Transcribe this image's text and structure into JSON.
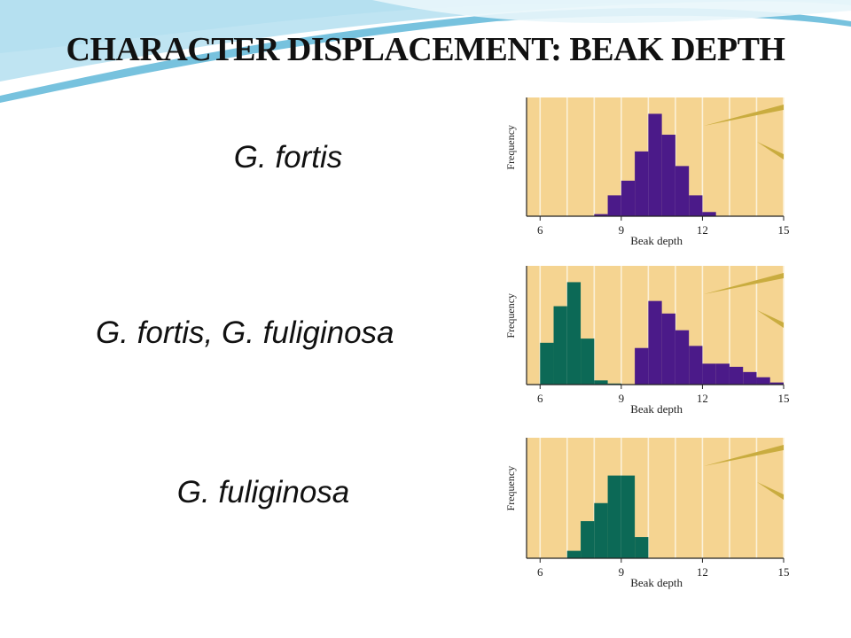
{
  "slide": {
    "title": "CHARACTER DISPLACEMENT: BEAK DEPTH",
    "labels": [
      "G. fortis",
      "G. fortis, G. fuliginosa",
      "G. fuliginosa"
    ]
  },
  "colors": {
    "panel_bg": "#f5d491",
    "gridline": "#fbf1d8",
    "fortis": "#4b1a89",
    "fuliginosa": "#0c6956",
    "quill": "#c9ac3f",
    "wave": "#7ec6e3"
  },
  "chart_data": [
    {
      "type": "bar",
      "subject": "G. fortis",
      "xlabel": "Beak depth",
      "ylabel": "Frequency",
      "xlim": [
        5.5,
        15
      ],
      "xticks": [
        6,
        9,
        12,
        15
      ],
      "ylim": [
        0,
        1
      ],
      "bin_width": 0.5,
      "series": [
        {
          "colorKey": "fortis",
          "bins": [
            [
              8,
              0.02
            ],
            [
              8.5,
              0.2
            ],
            [
              9,
              0.34
            ],
            [
              9.5,
              0.62
            ],
            [
              10,
              0.98
            ],
            [
              10.5,
              0.78
            ],
            [
              11,
              0.48
            ],
            [
              11.5,
              0.2
            ],
            [
              12,
              0.04
            ]
          ]
        }
      ]
    },
    {
      "type": "bar",
      "subject": "G. fortis, G. fuliginosa",
      "xlabel": "Beak depth",
      "ylabel": "Frequency",
      "xlim": [
        5.5,
        15
      ],
      "xticks": [
        6,
        9,
        12,
        15
      ],
      "ylim": [
        0,
        1
      ],
      "bin_width": 0.5,
      "series": [
        {
          "colorKey": "fuliginosa",
          "bins": [
            [
              6,
              0.4
            ],
            [
              6.5,
              0.75
            ],
            [
              7,
              0.98
            ],
            [
              7.5,
              0.44
            ],
            [
              8,
              0.04
            ],
            [
              8.5,
              0.01
            ]
          ]
        },
        {
          "colorKey": "fortis",
          "bins": [
            [
              9.5,
              0.35
            ],
            [
              10,
              0.8
            ],
            [
              10.5,
              0.68
            ],
            [
              11,
              0.52
            ],
            [
              11.5,
              0.37
            ],
            [
              12,
              0.2
            ],
            [
              12.5,
              0.2
            ],
            [
              13,
              0.17
            ],
            [
              13.5,
              0.12
            ],
            [
              14,
              0.07
            ],
            [
              14.5,
              0.02
            ]
          ]
        }
      ]
    },
    {
      "type": "bar",
      "subject": "G. fuliginosa",
      "xlabel": "Beak depth",
      "ylabel": "Frequency",
      "xlim": [
        5.5,
        15
      ],
      "xticks": [
        6,
        9,
        12,
        15
      ],
      "ylim": [
        0,
        1
      ],
      "bin_width": 0.5,
      "series": [
        {
          "colorKey": "fuliginosa",
          "bins": [
            [
              7,
              0.07
            ],
            [
              7.5,
              0.35
            ],
            [
              8,
              0.52
            ],
            [
              8.5,
              0.78
            ],
            [
              9,
              0.78
            ],
            [
              9.5,
              0.2
            ]
          ]
        }
      ]
    }
  ]
}
